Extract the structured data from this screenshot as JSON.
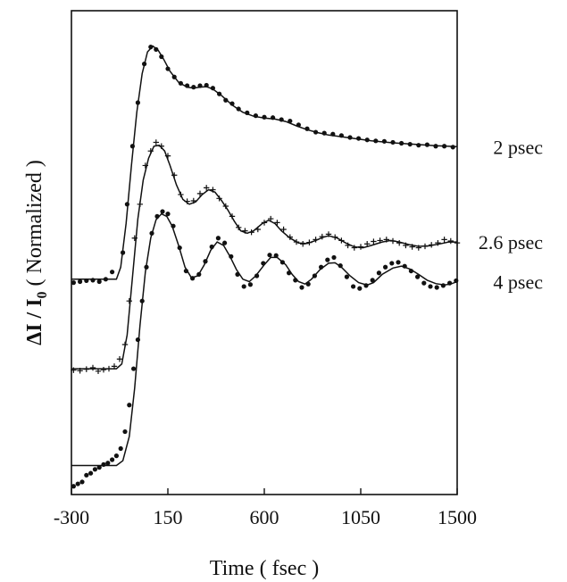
{
  "chart_data": {
    "type": "line",
    "title": "",
    "xlabel": "Time ( fsec )",
    "ylabel": "ΔI / I",
    "ylabel_subscript": "0",
    "ylabel_suffix": " ( Normalized )",
    "xlim": [
      -300,
      1500
    ],
    "xticks": [
      "-300",
      "150",
      "600",
      "1050",
      "1500"
    ],
    "ylim": [
      0,
      1
    ],
    "grid": false,
    "series": [
      {
        "name": "2 psec",
        "marker": "dot",
        "fit": [
          [
            -300,
            0.445
          ],
          [
            -120,
            0.445
          ],
          [
            -90,
            0.445
          ],
          [
            -70,
            0.47
          ],
          [
            -45,
            0.56
          ],
          [
            -20,
            0.68
          ],
          [
            5,
            0.79
          ],
          [
            30,
            0.87
          ],
          [
            55,
            0.915
          ],
          [
            80,
            0.927
          ],
          [
            105,
            0.918
          ],
          [
            130,
            0.9
          ],
          [
            160,
            0.875
          ],
          [
            200,
            0.852
          ],
          [
            240,
            0.842
          ],
          [
            270,
            0.84
          ],
          [
            300,
            0.842
          ],
          [
            330,
            0.843
          ],
          [
            360,
            0.838
          ],
          [
            400,
            0.825
          ],
          [
            450,
            0.805
          ],
          [
            500,
            0.79
          ],
          [
            550,
            0.782
          ],
          [
            600,
            0.778
          ],
          [
            650,
            0.776
          ],
          [
            700,
            0.771
          ],
          [
            750,
            0.762
          ],
          [
            800,
            0.754
          ],
          [
            850,
            0.748
          ],
          [
            900,
            0.743
          ],
          [
            1000,
            0.737
          ],
          [
            1100,
            0.731
          ],
          [
            1200,
            0.727
          ],
          [
            1300,
            0.724
          ],
          [
            1400,
            0.721
          ],
          [
            1500,
            0.719
          ]
        ],
        "points": [
          [
            -290,
            0.438
          ],
          [
            -260,
            0.44
          ],
          [
            -230,
            0.442
          ],
          [
            -200,
            0.443
          ],
          [
            -170,
            0.44
          ],
          [
            -140,
            0.445
          ],
          [
            -110,
            0.46
          ],
          [
            -60,
            0.5
          ],
          [
            -40,
            0.6
          ],
          [
            -15,
            0.72
          ],
          [
            10,
            0.81
          ],
          [
            40,
            0.89
          ],
          [
            70,
            0.925
          ],
          [
            95,
            0.92
          ],
          [
            120,
            0.905
          ],
          [
            150,
            0.88
          ],
          [
            180,
            0.863
          ],
          [
            210,
            0.85
          ],
          [
            240,
            0.845
          ],
          [
            270,
            0.842
          ],
          [
            300,
            0.845
          ],
          [
            330,
            0.846
          ],
          [
            360,
            0.84
          ],
          [
            390,
            0.828
          ],
          [
            420,
            0.815
          ],
          [
            450,
            0.808
          ],
          [
            480,
            0.797
          ],
          [
            520,
            0.789
          ],
          [
            560,
            0.783
          ],
          [
            600,
            0.78
          ],
          [
            640,
            0.779
          ],
          [
            680,
            0.775
          ],
          [
            720,
            0.772
          ],
          [
            760,
            0.764
          ],
          [
            800,
            0.756
          ],
          [
            840,
            0.749
          ],
          [
            880,
            0.747
          ],
          [
            920,
            0.745
          ],
          [
            960,
            0.742
          ],
          [
            1000,
            0.738
          ],
          [
            1040,
            0.736
          ],
          [
            1080,
            0.733
          ],
          [
            1120,
            0.731
          ],
          [
            1160,
            0.73
          ],
          [
            1200,
            0.728
          ],
          [
            1240,
            0.726
          ],
          [
            1280,
            0.724
          ],
          [
            1320,
            0.722
          ],
          [
            1360,
            0.723
          ],
          [
            1400,
            0.72
          ],
          [
            1440,
            0.72
          ],
          [
            1480,
            0.718
          ]
        ]
      },
      {
        "name": "2.6 psec",
        "marker": "plus",
        "fit": [
          [
            -300,
            0.26
          ],
          [
            -90,
            0.26
          ],
          [
            -65,
            0.27
          ],
          [
            -40,
            0.33
          ],
          [
            -15,
            0.45
          ],
          [
            10,
            0.57
          ],
          [
            35,
            0.65
          ],
          [
            60,
            0.695
          ],
          [
            85,
            0.72
          ],
          [
            110,
            0.722
          ],
          [
            135,
            0.71
          ],
          [
            160,
            0.68
          ],
          [
            190,
            0.64
          ],
          [
            220,
            0.61
          ],
          [
            250,
            0.6
          ],
          [
            280,
            0.605
          ],
          [
            310,
            0.62
          ],
          [
            340,
            0.63
          ],
          [
            370,
            0.625
          ],
          [
            400,
            0.608
          ],
          [
            430,
            0.588
          ],
          [
            460,
            0.565
          ],
          [
            490,
            0.545
          ],
          [
            520,
            0.54
          ],
          [
            550,
            0.545
          ],
          [
            590,
            0.56
          ],
          [
            620,
            0.567
          ],
          [
            650,
            0.56
          ],
          [
            680,
            0.545
          ],
          [
            720,
            0.53
          ],
          [
            760,
            0.52
          ],
          [
            800,
            0.519
          ],
          [
            840,
            0.525
          ],
          [
            870,
            0.531
          ],
          [
            900,
            0.535
          ],
          [
            940,
            0.53
          ],
          [
            980,
            0.52
          ],
          [
            1020,
            0.512
          ],
          [
            1060,
            0.51
          ],
          [
            1100,
            0.515
          ],
          [
            1150,
            0.522
          ],
          [
            1190,
            0.525
          ],
          [
            1230,
            0.522
          ],
          [
            1280,
            0.516
          ],
          [
            1320,
            0.513
          ],
          [
            1370,
            0.514
          ],
          [
            1420,
            0.518
          ],
          [
            1460,
            0.522
          ],
          [
            1500,
            0.522
          ]
        ],
        "points": [
          [
            -290,
            0.257
          ],
          [
            -260,
            0.256
          ],
          [
            -230,
            0.259
          ],
          [
            -200,
            0.262
          ],
          [
            -175,
            0.255
          ],
          [
            -150,
            0.258
          ],
          [
            -125,
            0.26
          ],
          [
            -100,
            0.265
          ],
          [
            -75,
            0.28
          ],
          [
            -50,
            0.31
          ],
          [
            -30,
            0.4
          ],
          [
            -5,
            0.53
          ],
          [
            20,
            0.6
          ],
          [
            45,
            0.68
          ],
          [
            70,
            0.71
          ],
          [
            95,
            0.728
          ],
          [
            120,
            0.72
          ],
          [
            150,
            0.7
          ],
          [
            180,
            0.66
          ],
          [
            210,
            0.62
          ],
          [
            240,
            0.606
          ],
          [
            270,
            0.607
          ],
          [
            300,
            0.622
          ],
          [
            330,
            0.634
          ],
          [
            360,
            0.63
          ],
          [
            390,
            0.612
          ],
          [
            420,
            0.596
          ],
          [
            450,
            0.575
          ],
          [
            480,
            0.552
          ],
          [
            510,
            0.545
          ],
          [
            540,
            0.542
          ],
          [
            570,
            0.548
          ],
          [
            600,
            0.562
          ],
          [
            630,
            0.57
          ],
          [
            660,
            0.562
          ],
          [
            690,
            0.548
          ],
          [
            720,
            0.532
          ],
          [
            750,
            0.522
          ],
          [
            780,
            0.518
          ],
          [
            810,
            0.521
          ],
          [
            840,
            0.527
          ],
          [
            870,
            0.533
          ],
          [
            900,
            0.538
          ],
          [
            930,
            0.532
          ],
          [
            960,
            0.525
          ],
          [
            990,
            0.515
          ],
          [
            1020,
            0.51
          ],
          [
            1050,
            0.512
          ],
          [
            1080,
            0.518
          ],
          [
            1110,
            0.523
          ],
          [
            1140,
            0.525
          ],
          [
            1170,
            0.527
          ],
          [
            1200,
            0.524
          ],
          [
            1230,
            0.52
          ],
          [
            1260,
            0.515
          ],
          [
            1290,
            0.512
          ],
          [
            1320,
            0.51
          ],
          [
            1350,
            0.513
          ],
          [
            1380,
            0.516
          ],
          [
            1410,
            0.52
          ],
          [
            1440,
            0.527
          ],
          [
            1470,
            0.524
          ],
          [
            1500,
            0.52
          ]
        ]
      },
      {
        "name": "4 psec",
        "marker": "dot",
        "fit": [
          [
            -300,
            0.06
          ],
          [
            -90,
            0.06
          ],
          [
            -60,
            0.07
          ],
          [
            -30,
            0.12
          ],
          [
            -5,
            0.22
          ],
          [
            20,
            0.35
          ],
          [
            45,
            0.46
          ],
          [
            70,
            0.53
          ],
          [
            95,
            0.568
          ],
          [
            120,
            0.58
          ],
          [
            145,
            0.575
          ],
          [
            170,
            0.555
          ],
          [
            200,
            0.515
          ],
          [
            230,
            0.47
          ],
          [
            260,
            0.448
          ],
          [
            290,
            0.452
          ],
          [
            320,
            0.475
          ],
          [
            350,
            0.505
          ],
          [
            380,
            0.522
          ],
          [
            410,
            0.515
          ],
          [
            440,
            0.492
          ],
          [
            470,
            0.465
          ],
          [
            500,
            0.445
          ],
          [
            530,
            0.44
          ],
          [
            560,
            0.452
          ],
          [
            600,
            0.475
          ],
          [
            630,
            0.49
          ],
          [
            660,
            0.49
          ],
          [
            700,
            0.475
          ],
          [
            730,
            0.455
          ],
          [
            760,
            0.44
          ],
          [
            790,
            0.435
          ],
          [
            820,
            0.445
          ],
          [
            860,
            0.465
          ],
          [
            900,
            0.478
          ],
          [
            930,
            0.479
          ],
          [
            960,
            0.47
          ],
          [
            1000,
            0.452
          ],
          [
            1040,
            0.438
          ],
          [
            1080,
            0.433
          ],
          [
            1110,
            0.438
          ],
          [
            1150,
            0.455
          ],
          [
            1200,
            0.468
          ],
          [
            1240,
            0.472
          ],
          [
            1280,
            0.466
          ],
          [
            1320,
            0.455
          ],
          [
            1360,
            0.443
          ],
          [
            1400,
            0.436
          ],
          [
            1440,
            0.433
          ],
          [
            1470,
            0.435
          ],
          [
            1500,
            0.44
          ]
        ],
        "points": [
          [
            -290,
            0.017
          ],
          [
            -270,
            0.022
          ],
          [
            -250,
            0.026
          ],
          [
            -230,
            0.04
          ],
          [
            -210,
            0.044
          ],
          [
            -190,
            0.052
          ],
          [
            -170,
            0.056
          ],
          [
            -150,
            0.062
          ],
          [
            -130,
            0.065
          ],
          [
            -110,
            0.072
          ],
          [
            -90,
            0.08
          ],
          [
            -70,
            0.095
          ],
          [
            -50,
            0.13
          ],
          [
            -30,
            0.185
          ],
          [
            -10,
            0.26
          ],
          [
            10,
            0.32
          ],
          [
            30,
            0.4
          ],
          [
            50,
            0.47
          ],
          [
            75,
            0.54
          ],
          [
            100,
            0.575
          ],
          [
            125,
            0.585
          ],
          [
            150,
            0.58
          ],
          [
            175,
            0.555
          ],
          [
            205,
            0.51
          ],
          [
            235,
            0.462
          ],
          [
            265,
            0.447
          ],
          [
            295,
            0.455
          ],
          [
            325,
            0.482
          ],
          [
            355,
            0.512
          ],
          [
            385,
            0.53
          ],
          [
            415,
            0.52
          ],
          [
            445,
            0.492
          ],
          [
            475,
            0.455
          ],
          [
            505,
            0.43
          ],
          [
            535,
            0.434
          ],
          [
            565,
            0.452
          ],
          [
            595,
            0.478
          ],
          [
            625,
            0.495
          ],
          [
            655,
            0.494
          ],
          [
            685,
            0.48
          ],
          [
            715,
            0.458
          ],
          [
            745,
            0.443
          ],
          [
            775,
            0.428
          ],
          [
            805,
            0.435
          ],
          [
            835,
            0.452
          ],
          [
            865,
            0.47
          ],
          [
            895,
            0.485
          ],
          [
            925,
            0.49
          ],
          [
            955,
            0.473
          ],
          [
            985,
            0.45
          ],
          [
            1015,
            0.43
          ],
          [
            1045,
            0.426
          ],
          [
            1075,
            0.432
          ],
          [
            1105,
            0.443
          ],
          [
            1135,
            0.458
          ],
          [
            1165,
            0.47
          ],
          [
            1195,
            0.478
          ],
          [
            1225,
            0.48
          ],
          [
            1255,
            0.472
          ],
          [
            1285,
            0.462
          ],
          [
            1315,
            0.45
          ],
          [
            1345,
            0.437
          ],
          [
            1375,
            0.43
          ],
          [
            1405,
            0.428
          ],
          [
            1435,
            0.432
          ],
          [
            1465,
            0.437
          ],
          [
            1495,
            0.442
          ]
        ]
      }
    ]
  }
}
